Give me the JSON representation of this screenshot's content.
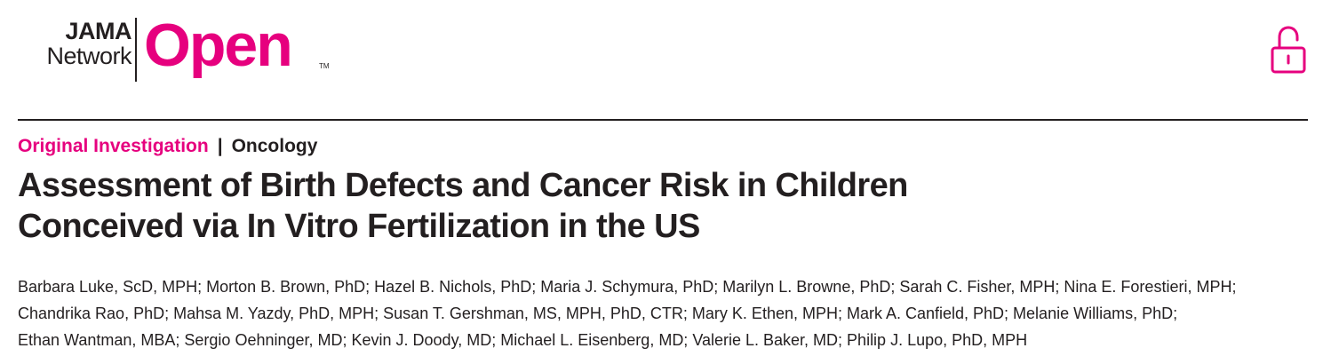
{
  "brand": {
    "line1": "JAMA",
    "line2": "Network",
    "open": "Open",
    "tm": "TM",
    "color_accent": "#e6007e",
    "color_text": "#231f20"
  },
  "header_icon": "open-lock-icon",
  "section": {
    "primary": "Original Investigation",
    "separator": "|",
    "secondary": "Oncology"
  },
  "article": {
    "title_lines": [
      "Assessment of Birth Defects and Cancer Risk in Children",
      "Conceived via In Vitro Fertilization in the US"
    ],
    "author_lines": [
      "Barbara Luke, ScD, MPH; Morton B. Brown, PhD; Hazel B. Nichols, PhD; Maria J. Schymura, PhD; Marilyn L. Browne, PhD; Sarah C. Fisher, MPH; Nina E. Forestieri, MPH;",
      "Chandrika Rao, PhD; Mahsa M. Yazdy, PhD, MPH; Susan T. Gershman, MS, MPH, PhD, CTR; Mary K. Ethen, MPH; Mark A. Canfield, PhD; Melanie Williams, PhD;",
      "Ethan Wantman, MBA; Sergio Oehninger, MD; Kevin J. Doody, MD; Michael L. Eisenberg, MD; Valerie L. Baker, MD; Philip J. Lupo, PhD, MPH"
    ]
  }
}
